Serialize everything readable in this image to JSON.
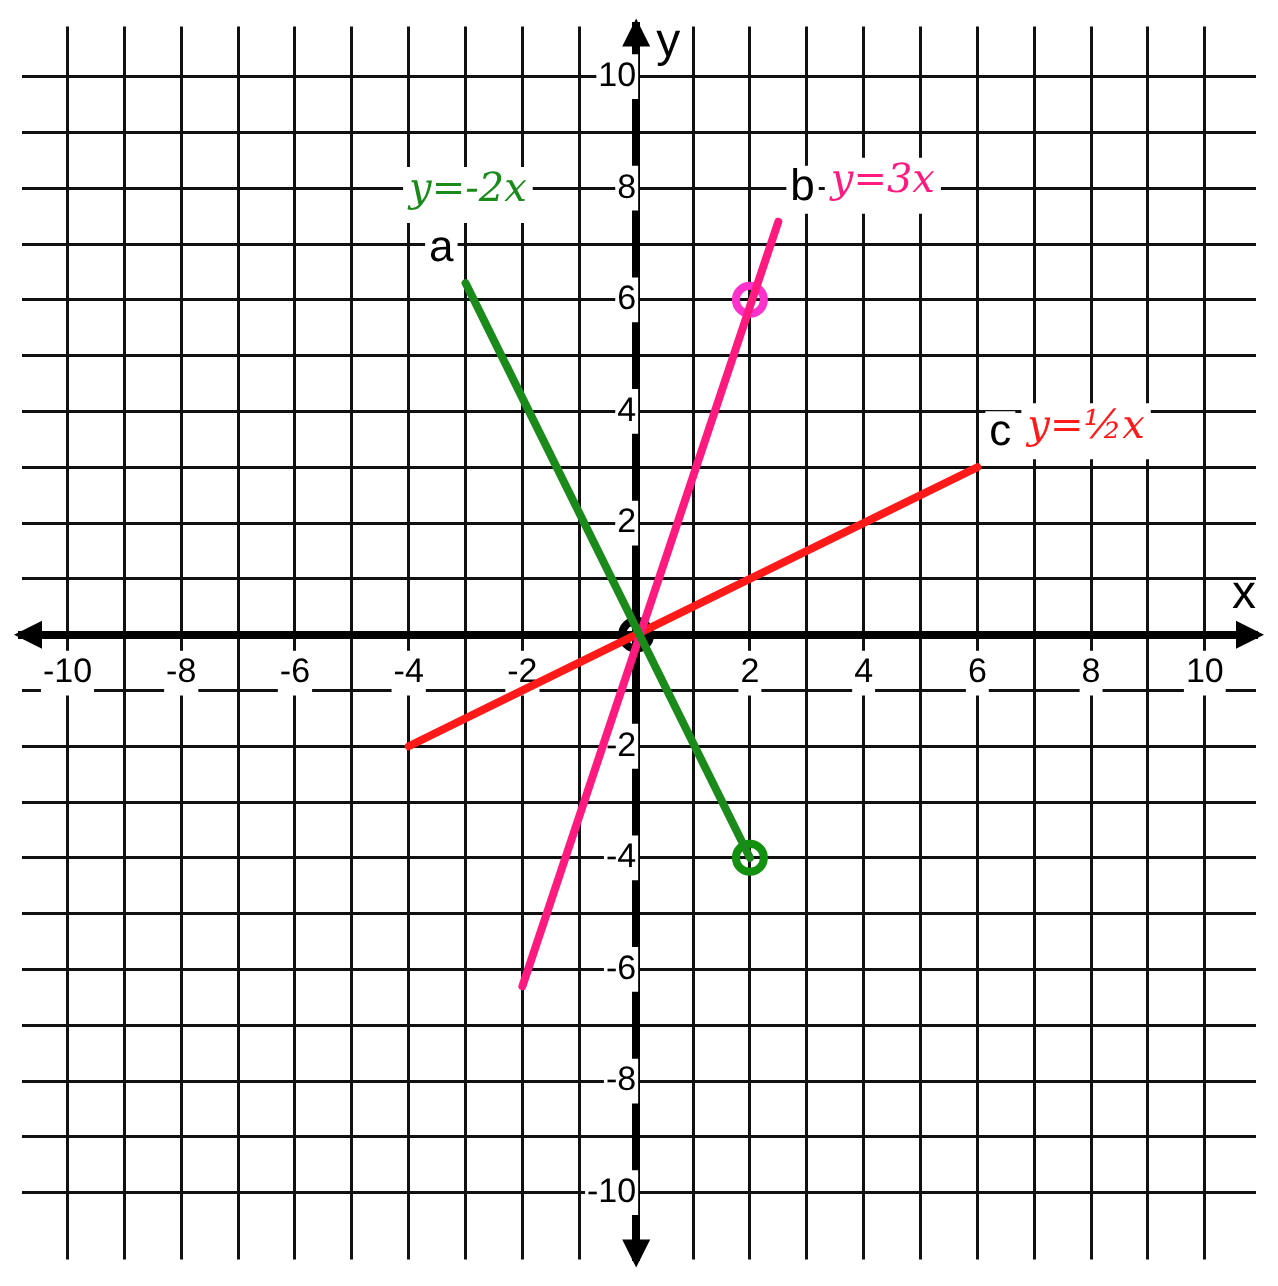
{
  "chart_data": {
    "type": "line",
    "xlabel": "x",
    "ylabel": "y",
    "xlim": [
      -10.8,
      10.9
    ],
    "ylim": [
      -11.2,
      10.9
    ],
    "xticks": [
      -10,
      {
        "value": -9,
        "label": null
      },
      -8,
      {
        "value": -7,
        "label": null
      },
      -6,
      {
        "value": -5,
        "label": null
      },
      -4,
      {
        "value": -3,
        "label": null
      },
      -2,
      {
        "value": -1,
        "label": null
      },
      {
        "value": 0,
        "label": null
      },
      {
        "value": 1,
        "label": null
      },
      2,
      {
        "value": 3,
        "label": null
      },
      4,
      {
        "value": 5,
        "label": null
      },
      6,
      {
        "value": 7,
        "label": null
      },
      8,
      {
        "value": 9,
        "label": null
      },
      10
    ],
    "yticks": [
      -10,
      {
        "value": -9,
        "label": null
      },
      -8,
      {
        "value": -7,
        "label": null
      },
      -6,
      {
        "value": -5,
        "label": null
      },
      -4,
      {
        "value": -3,
        "label": null
      },
      -2,
      {
        "value": -1,
        "label": null
      },
      {
        "value": 0,
        "label": null
      },
      {
        "value": 1,
        "label": null
      },
      2,
      {
        "value": 3,
        "label": null
      },
      4,
      {
        "value": 5,
        "label": null
      },
      6,
      {
        "value": 7,
        "label": null
      },
      8,
      {
        "value": 9,
        "label": null
      },
      10
    ],
    "grid": true,
    "marker": "none",
    "line_style": "solid",
    "series": [
      {
        "name": "a",
        "color": "#1a8a1a",
        "x": [
          -3,
          2
        ],
        "values": [
          6.3,
          -4
        ]
      },
      {
        "name": "b",
        "color": "#ff1a7f",
        "x": [
          -2,
          2.5
        ],
        "values": [
          -6.3,
          7.4
        ]
      },
      {
        "name": "c",
        "color": "#ff1a1a",
        "x": [
          -4,
          6
        ],
        "values": [
          -2,
          3
        ]
      },
      {
        "type": "scatter",
        "marker": "circle",
        "color": "#12900f",
        "x": [
          2
        ],
        "values": [
          -4
        ]
      },
      {
        "type": "scatter",
        "marker": "circle",
        "color": "#ff33cc",
        "x": [
          2
        ],
        "values": [
          6
        ]
      },
      {
        "type": "scatter",
        "marker": "circle",
        "color": "#000000",
        "x": [
          0
        ],
        "values": [
          0
        ]
      }
    ],
    "annotations": [
      "y=-2x",
      "y=3x",
      "y=½x"
    ]
  }
}
